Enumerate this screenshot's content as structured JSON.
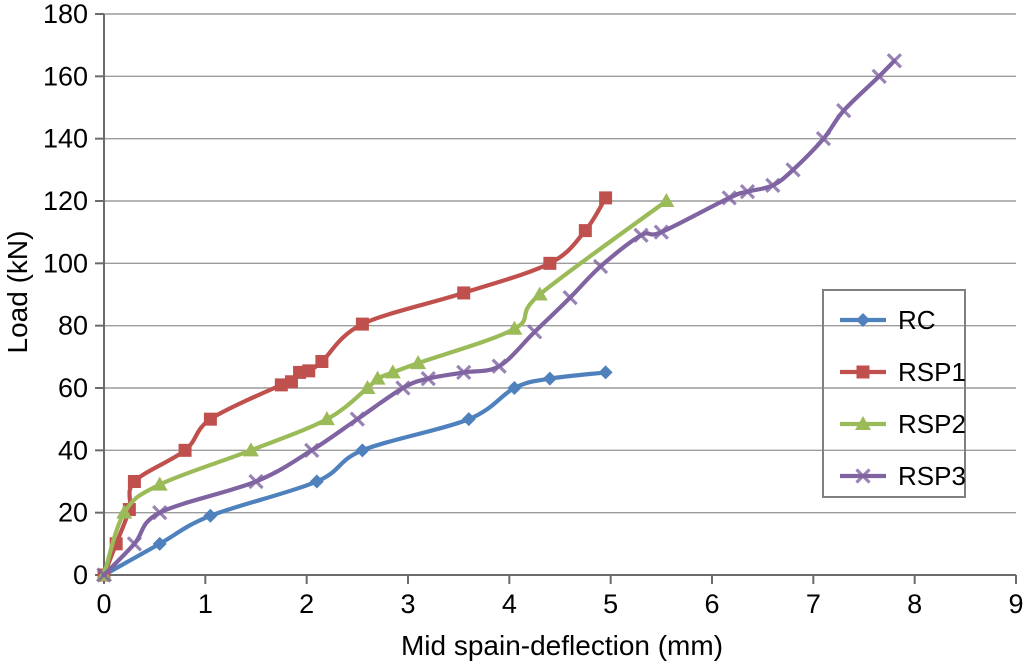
{
  "figure": {
    "background": "#ffffff",
    "grid_color": "#9c9c9c",
    "axis_color": "#6b6b6b",
    "text_color": "#000000",
    "legend_border_color": "#808080"
  },
  "chart_data": {
    "type": "line",
    "title": "",
    "xlabel": "Mid spain-deflection (mm)",
    "ylabel": "Load (kN)",
    "xlim": [
      0,
      9
    ],
    "ylim": [
      0,
      180
    ],
    "x_ticks": [
      0,
      1,
      2,
      3,
      4,
      5,
      6,
      7,
      8,
      9
    ],
    "y_ticks": [
      0,
      20,
      40,
      60,
      80,
      100,
      120,
      140,
      160,
      180
    ],
    "grid": "horizontal",
    "legend_position": "middle-right",
    "series": [
      {
        "name": "RC",
        "color": "#4F81BD",
        "marker": "diamond",
        "points": [
          [
            0,
            0
          ],
          [
            0.55,
            10
          ],
          [
            1.05,
            19
          ],
          [
            2.1,
            30
          ],
          [
            2.55,
            40
          ],
          [
            3.6,
            50
          ],
          [
            4.05,
            60
          ],
          [
            4.4,
            63
          ],
          [
            4.95,
            65
          ]
        ]
      },
      {
        "name": "RSP1",
        "color": "#C0504D",
        "marker": "square",
        "points": [
          [
            0,
            0
          ],
          [
            0.12,
            10
          ],
          [
            0.25,
            21
          ],
          [
            0.3,
            30
          ],
          [
            0.8,
            40
          ],
          [
            1.05,
            50
          ],
          [
            1.75,
            61
          ],
          [
            1.85,
            62
          ],
          [
            1.93,
            65
          ],
          [
            2.02,
            65.5
          ],
          [
            2.15,
            68.5
          ],
          [
            2.55,
            80.5
          ],
          [
            3.55,
            90.5
          ],
          [
            4.4,
            100
          ],
          [
            4.75,
            110.5
          ],
          [
            4.95,
            121
          ]
        ]
      },
      {
        "name": "RSP2",
        "color": "#9BBB59",
        "marker": "triangle",
        "points": [
          [
            0,
            0
          ],
          [
            0.2,
            20
          ],
          [
            0.55,
            29
          ],
          [
            1.45,
            40
          ],
          [
            2.2,
            50
          ],
          [
            2.6,
            60
          ],
          [
            2.7,
            63
          ],
          [
            2.85,
            65
          ],
          [
            3.1,
            68
          ],
          [
            4.05,
            79
          ],
          [
            4.3,
            90
          ],
          [
            5.55,
            120
          ]
        ]
      },
      {
        "name": "RSP3",
        "color": "#8064A2",
        "marker": "x",
        "points": [
          [
            0,
            0
          ],
          [
            0.3,
            10
          ],
          [
            0.55,
            20
          ],
          [
            1.5,
            30
          ],
          [
            2.05,
            40
          ],
          [
            2.5,
            50
          ],
          [
            2.95,
            60
          ],
          [
            3.2,
            63
          ],
          [
            3.55,
            65
          ],
          [
            3.9,
            67
          ],
          [
            4.25,
            78
          ],
          [
            4.6,
            89
          ],
          [
            4.9,
            99
          ],
          [
            5.3,
            109
          ],
          [
            5.5,
            110
          ],
          [
            6.17,
            121
          ],
          [
            6.35,
            123
          ],
          [
            6.6,
            125
          ],
          [
            6.8,
            130
          ],
          [
            7.1,
            140
          ],
          [
            7.3,
            149
          ],
          [
            7.65,
            160
          ],
          [
            7.8,
            165
          ]
        ]
      }
    ]
  }
}
